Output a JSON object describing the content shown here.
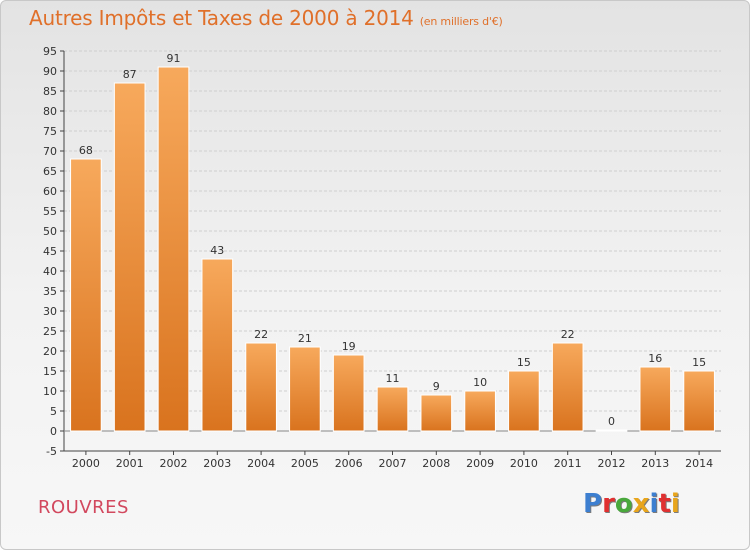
{
  "header": {
    "title": "Autres Impôts et Taxes de 2000 à 2014",
    "unit": "(en milliers d'€)"
  },
  "footer": {
    "commune": "ROUVRES",
    "logo_letters": [
      "P",
      "r",
      "o",
      "x",
      "i",
      "t",
      "i"
    ]
  },
  "colors": {
    "bar_top": "#f7a95c",
    "bar_bottom": "#d9731e",
    "title": "#e0702a",
    "grid": "#cfcfcf"
  },
  "chart_data": {
    "type": "bar",
    "title": "Autres Impôts et Taxes de 2000 à 2014",
    "subtitle": "(en milliers d'€)",
    "xlabel": "",
    "ylabel": "",
    "categories": [
      "2000",
      "2001",
      "2002",
      "2003",
      "2004",
      "2005",
      "2006",
      "2007",
      "2008",
      "2009",
      "2010",
      "2011",
      "2012",
      "2013",
      "2014"
    ],
    "values": [
      68,
      87,
      91,
      43,
      22,
      21,
      19,
      11,
      9,
      10,
      15,
      22,
      0,
      16,
      15
    ],
    "data_labels": [
      "68",
      "87",
      "91",
      "43",
      "22",
      "21",
      "19",
      "11",
      "9",
      "10",
      "15",
      "22",
      "0",
      "16",
      "15"
    ],
    "ylim": [
      -5,
      95
    ],
    "yticks": [
      -5,
      0,
      5,
      10,
      15,
      20,
      25,
      30,
      35,
      40,
      45,
      50,
      55,
      60,
      65,
      70,
      75,
      80,
      85,
      90,
      95
    ],
    "grid": true,
    "legend": "none"
  }
}
